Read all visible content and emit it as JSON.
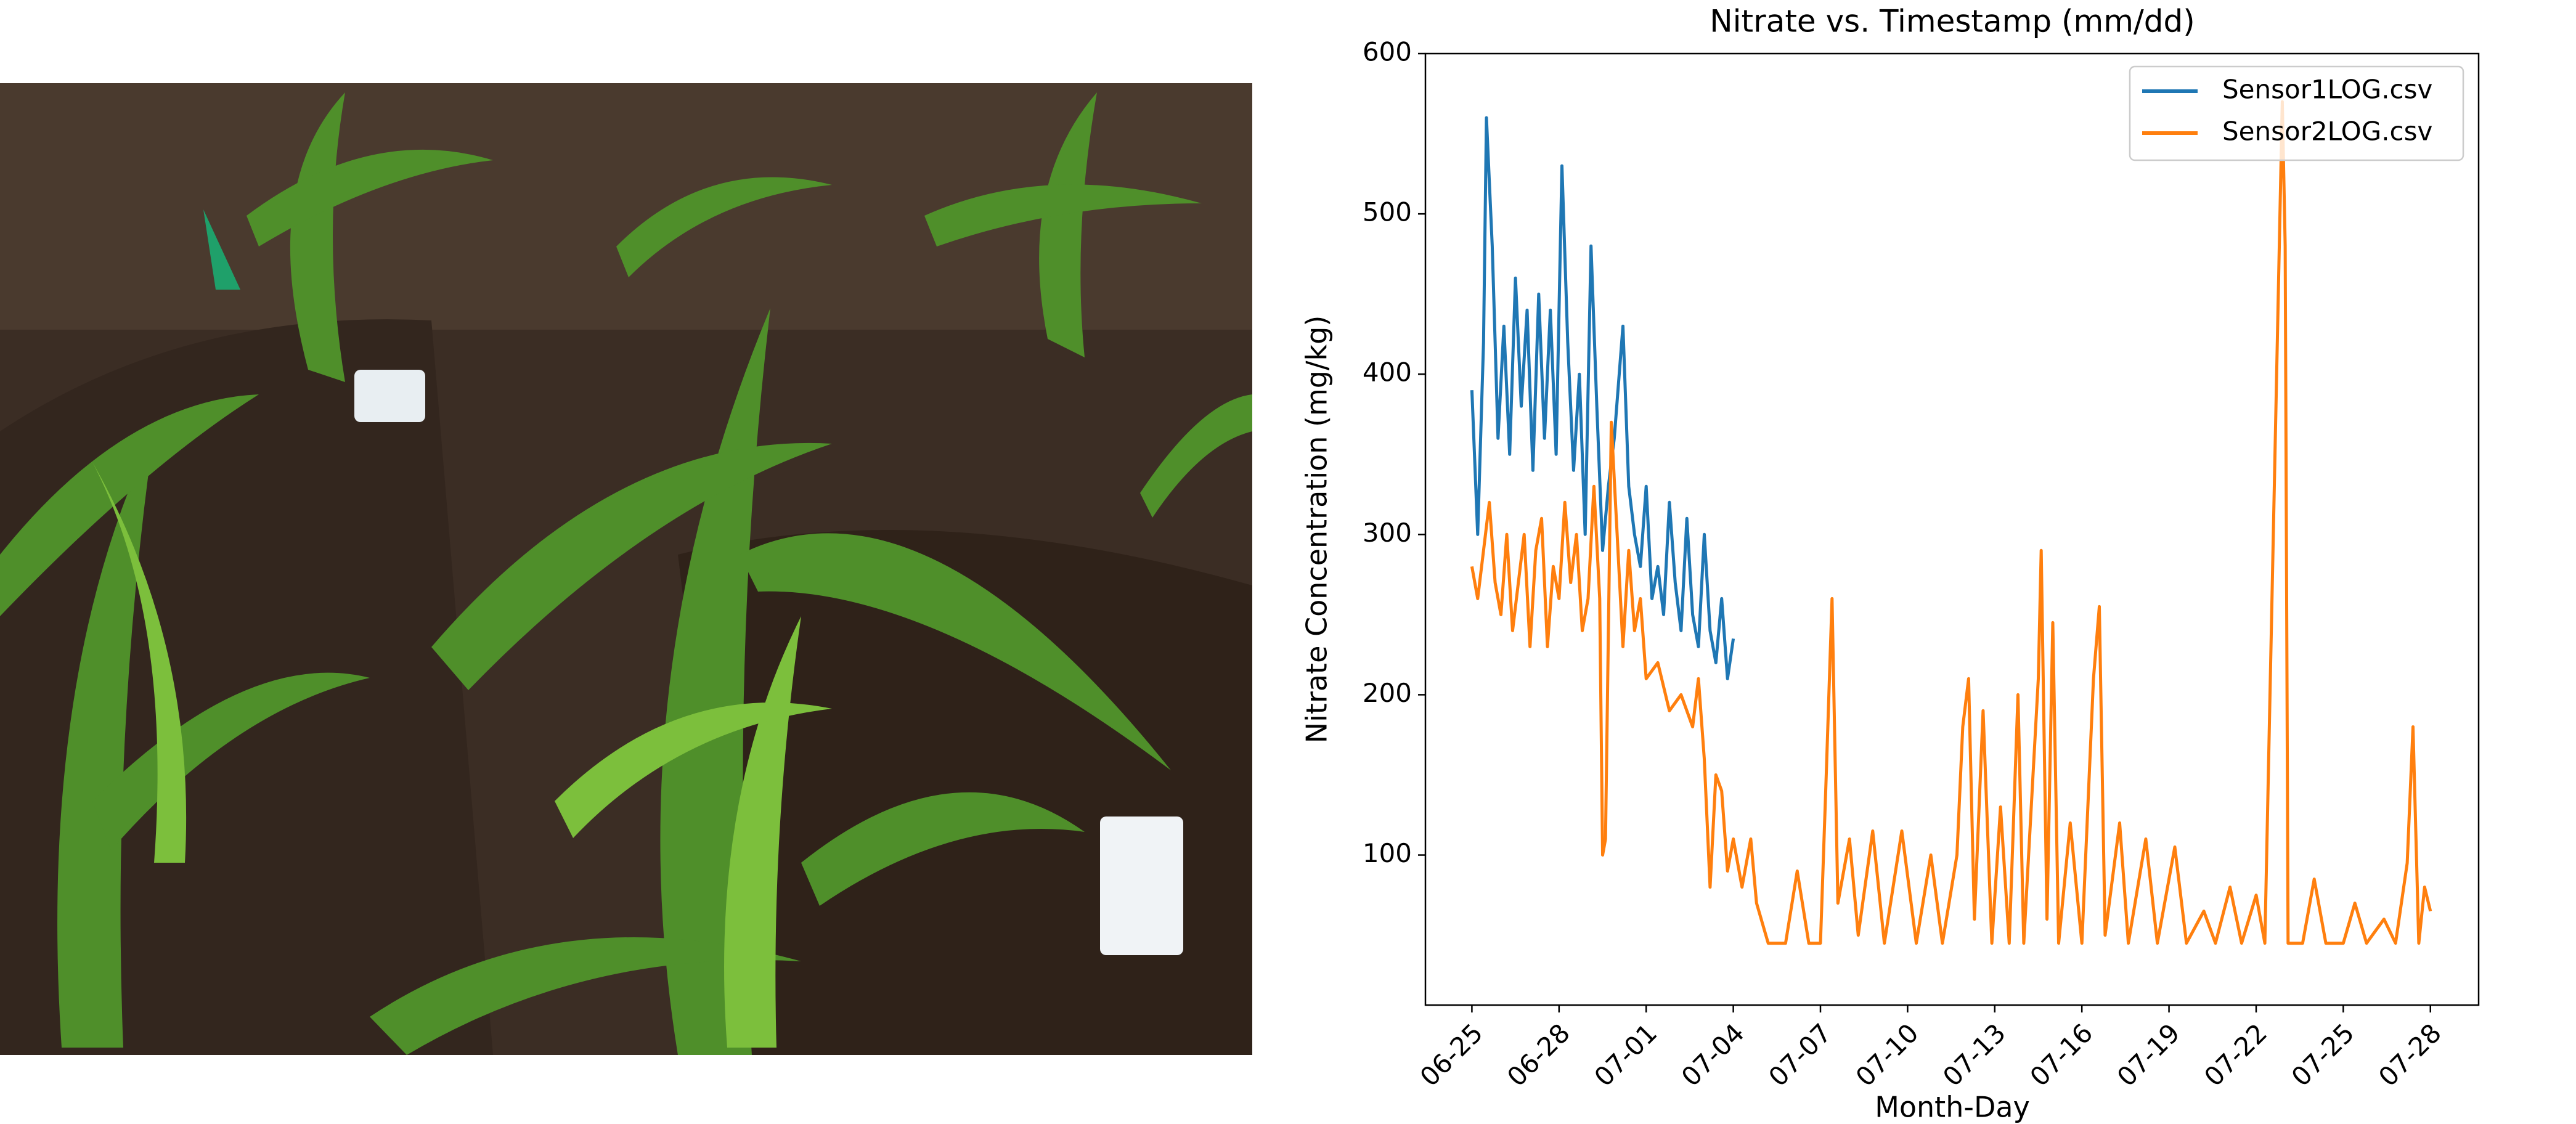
{
  "chart_data": {
    "type": "line",
    "title": "Nitrate vs. Timestamp (mm/dd)",
    "x_label": "Month-Day",
    "y_label": "Nitrate Concentration (mg/kg)",
    "xlim": [
      -1.6,
      34.66
    ],
    "ylim": [
      6.4,
      600
    ],
    "xticks": [
      {
        "value": 0,
        "label": "06-25"
      },
      {
        "value": 3,
        "label": "06-28"
      },
      {
        "value": 6,
        "label": "07-01"
      },
      {
        "value": 9,
        "label": "07-04"
      },
      {
        "value": 12,
        "label": "07-07"
      },
      {
        "value": 15,
        "label": "07-10"
      },
      {
        "value": 18,
        "label": "07-13"
      },
      {
        "value": 21,
        "label": "07-16"
      },
      {
        "value": 24,
        "label": "07-19"
      },
      {
        "value": 27,
        "label": "07-22"
      },
      {
        "value": 30,
        "label": "07-25"
      },
      {
        "value": 33,
        "label": "07-28"
      }
    ],
    "yticks": [
      100,
      200,
      300,
      400,
      500,
      600
    ],
    "grid": false,
    "legend": "upper right",
    "series": [
      {
        "name": "Sensor1LOG.csv",
        "color": "#1f77b4",
        "x": [
          0.0,
          0.2,
          0.4,
          0.5,
          0.7,
          0.9,
          1.1,
          1.3,
          1.5,
          1.7,
          1.9,
          2.1,
          2.3,
          2.5,
          2.7,
          2.9,
          3.1,
          3.3,
          3.5,
          3.7,
          3.9,
          4.1,
          4.3,
          4.5,
          4.7,
          4.9,
          5.2,
          5.4,
          5.6,
          5.8,
          6.0,
          6.2,
          6.4,
          6.6,
          6.8,
          7.0,
          7.2,
          7.4,
          7.6,
          7.8,
          8.0,
          8.2,
          8.4,
          8.6,
          8.8,
          9.0
        ],
        "values": [
          390,
          300,
          420,
          560,
          480,
          360,
          430,
          350,
          460,
          380,
          440,
          340,
          450,
          360,
          440,
          350,
          530,
          420,
          340,
          400,
          300,
          480,
          380,
          290,
          330,
          360,
          430,
          330,
          300,
          280,
          330,
          260,
          280,
          250,
          320,
          270,
          240,
          310,
          250,
          230,
          300,
          240,
          220,
          260,
          210,
          235
        ]
      },
      {
        "name": "Sensor2LOG.csv",
        "color": "#ff7f0e",
        "x": [
          0.0,
          0.2,
          0.4,
          0.6,
          0.8,
          1.0,
          1.2,
          1.4,
          1.6,
          1.8,
          2.0,
          2.2,
          2.4,
          2.6,
          2.8,
          3.0,
          3.2,
          3.4,
          3.6,
          3.8,
          4.0,
          4.2,
          4.4,
          4.5,
          4.6,
          4.8,
          5.0,
          5.2,
          5.4,
          5.6,
          5.8,
          6.0,
          6.4,
          6.8,
          7.2,
          7.6,
          7.8,
          8.0,
          8.2,
          8.4,
          8.6,
          8.8,
          9.0,
          9.3,
          9.6,
          9.8,
          10.2,
          10.8,
          11.2,
          11.6,
          12.0,
          12.2,
          12.4,
          12.6,
          13.0,
          13.3,
          13.8,
          14.2,
          14.8,
          15.3,
          15.8,
          16.2,
          16.7,
          16.9,
          17.1,
          17.3,
          17.6,
          17.9,
          18.2,
          18.5,
          18.8,
          19.0,
          19.5,
          19.6,
          19.8,
          20.0,
          20.2,
          20.6,
          21.0,
          21.4,
          21.6,
          21.8,
          22.3,
          22.6,
          23.2,
          23.6,
          24.2,
          24.6,
          25.2,
          25.6,
          26.1,
          26.5,
          27.0,
          27.3,
          27.9,
          28.0,
          28.1,
          28.6,
          29.0,
          29.4,
          30.0,
          30.4,
          30.8,
          31.4,
          31.8,
          32.2,
          32.4,
          32.6,
          32.8,
          33.0
        ],
        "values": [
          280,
          260,
          290,
          320,
          270,
          250,
          300,
          240,
          270,
          300,
          230,
          290,
          310,
          230,
          280,
          260,
          320,
          270,
          300,
          240,
          260,
          330,
          260,
          100,
          110,
          370,
          300,
          230,
          290,
          240,
          260,
          210,
          220,
          190,
          200,
          180,
          210,
          160,
          80,
          150,
          140,
          90,
          110,
          80,
          110,
          70,
          45,
          45,
          90,
          45,
          45,
          150,
          260,
          70,
          110,
          50,
          115,
          45,
          115,
          45,
          100,
          45,
          100,
          180,
          210,
          60,
          190,
          45,
          130,
          45,
          200,
          45,
          210,
          290,
          60,
          245,
          45,
          120,
          45,
          210,
          255,
          50,
          120,
          45,
          110,
          45,
          105,
          45,
          65,
          45,
          80,
          45,
          75,
          45,
          570,
          480,
          45,
          45,
          85,
          45,
          45,
          70,
          45,
          60,
          45,
          95,
          180,
          45,
          80,
          65
        ]
      }
    ]
  }
}
